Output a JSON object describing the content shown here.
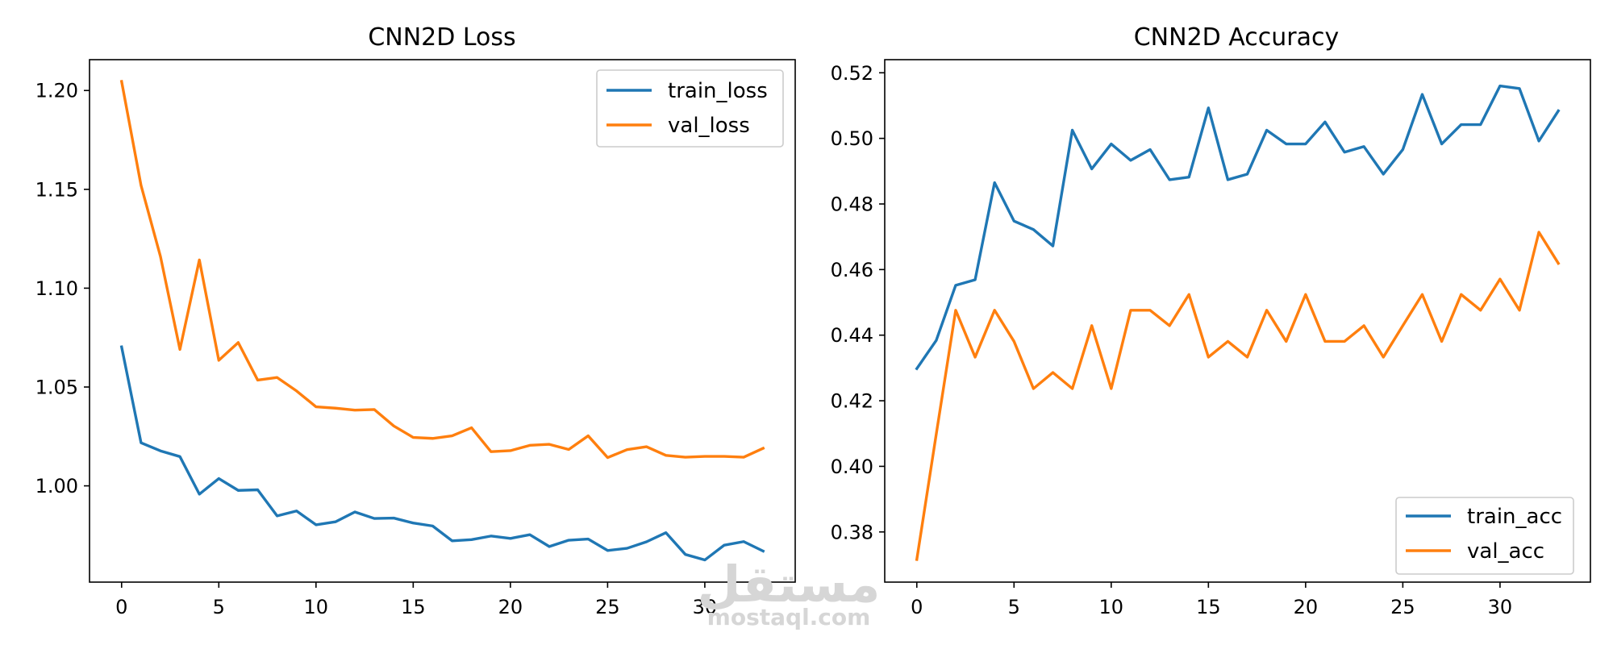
{
  "watermark": {
    "arabic": "مستقل",
    "latin": "mostaql.com"
  },
  "colors": {
    "train": "#1f77b4",
    "val": "#ff7f0e"
  },
  "chart_data": [
    {
      "type": "line",
      "title": "CNN2D Loss",
      "xlabel": "",
      "ylabel": "",
      "xlim": [
        -1.65,
        34.65
      ],
      "ylim": [
        0.9513,
        1.2156
      ],
      "xticks": [
        0,
        5,
        10,
        15,
        20,
        25,
        30
      ],
      "yticks": [
        1.0,
        1.05,
        1.1,
        1.15,
        1.2
      ],
      "ytick_labels": [
        "1.00",
        "1.05",
        "1.10",
        "1.15",
        "1.20"
      ],
      "legend": "top-right",
      "grid": false,
      "x": [
        0,
        1,
        2,
        3,
        4,
        5,
        6,
        7,
        8,
        9,
        10,
        11,
        12,
        13,
        14,
        15,
        16,
        17,
        18,
        19,
        20,
        21,
        22,
        23,
        24,
        25,
        26,
        27,
        28,
        29,
        30,
        31,
        32,
        33
      ],
      "series": [
        {
          "name": "train_loss",
          "color": "#1f77b4",
          "values": [
            1.0703,
            1.0218,
            1.0177,
            1.0148,
            0.9958,
            1.0037,
            0.9977,
            0.998,
            0.9848,
            0.9873,
            0.9803,
            0.9818,
            0.9868,
            0.9835,
            0.9837,
            0.9812,
            0.9797,
            0.9722,
            0.9728,
            0.9746,
            0.9734,
            0.9753,
            0.9693,
            0.9725,
            0.9731,
            0.9673,
            0.9684,
            0.9717,
            0.9763,
            0.9653,
            0.9625,
            0.97,
            0.9718,
            0.967
          ]
        },
        {
          "name": "val_loss",
          "color": "#ff7f0e",
          "values": [
            1.2046,
            1.152,
            1.116,
            1.069,
            1.1143,
            1.0635,
            1.0725,
            1.0535,
            1.0548,
            1.048,
            1.04,
            1.0393,
            1.0383,
            1.0386,
            1.0303,
            1.0245,
            1.024,
            1.0253,
            1.0294,
            1.0173,
            1.0178,
            1.0205,
            1.021,
            1.0184,
            1.0253,
            1.0143,
            1.0183,
            1.0198,
            1.0154,
            1.0145,
            1.0149,
            1.0149,
            1.0145,
            1.019
          ]
        }
      ]
    },
    {
      "type": "line",
      "title": "CNN2D Accuracy",
      "xlabel": "",
      "ylabel": "",
      "xlim": [
        -1.65,
        34.65
      ],
      "ylim": [
        0.3647,
        0.524
      ],
      "xticks": [
        0,
        5,
        10,
        15,
        20,
        25,
        30
      ],
      "yticks": [
        0.38,
        0.4,
        0.42,
        0.44,
        0.46,
        0.48,
        0.5,
        0.52
      ],
      "ytick_labels": [
        "0.38",
        "0.40",
        "0.42",
        "0.44",
        "0.46",
        "0.48",
        "0.50",
        "0.52"
      ],
      "legend": "bottom-right",
      "grid": false,
      "x": [
        0,
        1,
        2,
        3,
        4,
        5,
        6,
        7,
        8,
        9,
        10,
        11,
        12,
        13,
        14,
        15,
        16,
        17,
        18,
        19,
        20,
        21,
        22,
        23,
        24,
        25,
        26,
        27,
        28,
        29,
        30,
        31,
        32,
        33
      ],
      "series": [
        {
          "name": "train_acc",
          "color": "#1f77b4",
          "values": [
            0.4298,
            0.4384,
            0.4552,
            0.4569,
            0.4865,
            0.4748,
            0.4722,
            0.4672,
            0.5025,
            0.4907,
            0.4983,
            0.4933,
            0.4966,
            0.4874,
            0.4882,
            0.5093,
            0.4874,
            0.4891,
            0.5025,
            0.4983,
            0.4983,
            0.505,
            0.4958,
            0.4975,
            0.4891,
            0.4966,
            0.5134,
            0.4983,
            0.5042,
            0.5042,
            0.516,
            0.5152,
            0.4992,
            0.5084
          ]
        },
        {
          "name": "val_acc",
          "color": "#ff7f0e",
          "values": [
            0.3716,
            0.4098,
            0.4476,
            0.4333,
            0.4476,
            0.4381,
            0.4237,
            0.4286,
            0.4237,
            0.4429,
            0.4237,
            0.4476,
            0.4476,
            0.4429,
            0.4524,
            0.4333,
            0.4381,
            0.4333,
            0.4476,
            0.4381,
            0.4524,
            0.4381,
            0.4381,
            0.4429,
            0.4333,
            0.4429,
            0.4524,
            0.4381,
            0.4524,
            0.4476,
            0.4571,
            0.4476,
            0.4714,
            0.4619
          ]
        }
      ]
    }
  ]
}
